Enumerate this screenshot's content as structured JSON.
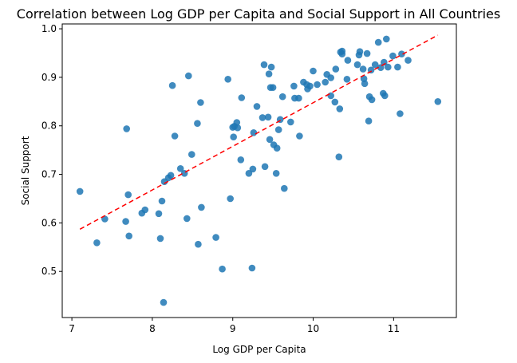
{
  "chart_data": {
    "type": "scatter",
    "title": "Correlation between Log GDP per Capita and Social Support in All Countries",
    "xlabel": "Log GDP per Capita",
    "ylabel": "Social Support",
    "xlim": [
      6.88,
      11.78
    ],
    "ylim": [
      0.405,
      1.01
    ],
    "xticks": [
      7,
      8,
      9,
      10,
      11
    ],
    "yticks": [
      0.5,
      0.6,
      0.7,
      0.8,
      0.9,
      1.0
    ],
    "grid": false,
    "legend": "none",
    "point_color": "#1f77b4",
    "trend_color": "#ff0000",
    "trendline": {
      "style": "dashed",
      "x": [
        7.1,
        11.55
      ],
      "y": [
        0.587,
        0.987
      ]
    },
    "points": [
      {
        "x": 7.1,
        "y": 0.665
      },
      {
        "x": 7.31,
        "y": 0.559
      },
      {
        "x": 7.41,
        "y": 0.608
      },
      {
        "x": 7.67,
        "y": 0.603
      },
      {
        "x": 7.68,
        "y": 0.794
      },
      {
        "x": 7.7,
        "y": 0.658
      },
      {
        "x": 7.71,
        "y": 0.573
      },
      {
        "x": 7.87,
        "y": 0.62
      },
      {
        "x": 7.91,
        "y": 0.627
      },
      {
        "x": 8.08,
        "y": 0.619
      },
      {
        "x": 8.1,
        "y": 0.568
      },
      {
        "x": 8.12,
        "y": 0.645
      },
      {
        "x": 8.14,
        "y": 0.436
      },
      {
        "x": 8.15,
        "y": 0.685
      },
      {
        "x": 8.2,
        "y": 0.693
      },
      {
        "x": 8.23,
        "y": 0.698
      },
      {
        "x": 8.25,
        "y": 0.883
      },
      {
        "x": 8.28,
        "y": 0.779
      },
      {
        "x": 8.35,
        "y": 0.712
      },
      {
        "x": 8.4,
        "y": 0.702
      },
      {
        "x": 8.43,
        "y": 0.609
      },
      {
        "x": 8.45,
        "y": 0.903
      },
      {
        "x": 8.49,
        "y": 0.741
      },
      {
        "x": 8.56,
        "y": 0.805
      },
      {
        "x": 8.57,
        "y": 0.556
      },
      {
        "x": 8.6,
        "y": 0.848
      },
      {
        "x": 8.61,
        "y": 0.632
      },
      {
        "x": 8.79,
        "y": 0.57
      },
      {
        "x": 8.87,
        "y": 0.505
      },
      {
        "x": 8.94,
        "y": 0.896
      },
      {
        "x": 8.97,
        "y": 0.65
      },
      {
        "x": 9.0,
        "y": 0.797
      },
      {
        "x": 9.01,
        "y": 0.777
      },
      {
        "x": 9.02,
        "y": 0.799
      },
      {
        "x": 9.05,
        "y": 0.807
      },
      {
        "x": 9.06,
        "y": 0.796
      },
      {
        "x": 9.1,
        "y": 0.73
      },
      {
        "x": 9.11,
        "y": 0.858
      },
      {
        "x": 9.2,
        "y": 0.702
      },
      {
        "x": 9.24,
        "y": 0.507
      },
      {
        "x": 9.25,
        "y": 0.711
      },
      {
        "x": 9.26,
        "y": 0.786
      },
      {
        "x": 9.3,
        "y": 0.84
      },
      {
        "x": 9.37,
        "y": 0.817
      },
      {
        "x": 9.39,
        "y": 0.926
      },
      {
        "x": 9.4,
        "y": 0.716
      },
      {
        "x": 9.44,
        "y": 0.818
      },
      {
        "x": 9.45,
        "y": 0.907
      },
      {
        "x": 9.46,
        "y": 0.772
      },
      {
        "x": 9.47,
        "y": 0.879
      },
      {
        "x": 9.48,
        "y": 0.921
      },
      {
        "x": 9.5,
        "y": 0.879
      },
      {
        "x": 9.51,
        "y": 0.761
      },
      {
        "x": 9.54,
        "y": 0.702
      },
      {
        "x": 9.55,
        "y": 0.754
      },
      {
        "x": 9.57,
        "y": 0.792
      },
      {
        "x": 9.59,
        "y": 0.813
      },
      {
        "x": 9.62,
        "y": 0.86
      },
      {
        "x": 9.64,
        "y": 0.671
      },
      {
        "x": 9.72,
        "y": 0.808
      },
      {
        "x": 9.76,
        "y": 0.882
      },
      {
        "x": 9.77,
        "y": 0.857
      },
      {
        "x": 9.82,
        "y": 0.857
      },
      {
        "x": 9.83,
        "y": 0.779
      },
      {
        "x": 9.88,
        "y": 0.89
      },
      {
        "x": 9.92,
        "y": 0.885
      },
      {
        "x": 9.93,
        "y": 0.876
      },
      {
        "x": 9.96,
        "y": 0.882
      },
      {
        "x": 10.0,
        "y": 0.913
      },
      {
        "x": 10.05,
        "y": 0.885
      },
      {
        "x": 10.15,
        "y": 0.89
      },
      {
        "x": 10.17,
        "y": 0.906
      },
      {
        "x": 10.22,
        "y": 0.862
      },
      {
        "x": 10.22,
        "y": 0.899
      },
      {
        "x": 10.27,
        "y": 0.849
      },
      {
        "x": 10.28,
        "y": 0.917
      },
      {
        "x": 10.32,
        "y": 0.736
      },
      {
        "x": 10.33,
        "y": 0.835
      },
      {
        "x": 10.34,
        "y": 0.952
      },
      {
        "x": 10.36,
        "y": 0.954
      },
      {
        "x": 10.36,
        "y": 0.948
      },
      {
        "x": 10.42,
        "y": 0.896
      },
      {
        "x": 10.43,
        "y": 0.935
      },
      {
        "x": 10.55,
        "y": 0.926
      },
      {
        "x": 10.57,
        "y": 0.946
      },
      {
        "x": 10.58,
        "y": 0.953
      },
      {
        "x": 10.62,
        "y": 0.917
      },
      {
        "x": 10.63,
        "y": 0.897
      },
      {
        "x": 10.64,
        "y": 0.887
      },
      {
        "x": 10.67,
        "y": 0.949
      },
      {
        "x": 10.69,
        "y": 0.81
      },
      {
        "x": 10.7,
        "y": 0.86
      },
      {
        "x": 10.72,
        "y": 0.915
      },
      {
        "x": 10.73,
        "y": 0.854
      },
      {
        "x": 10.77,
        "y": 0.926
      },
      {
        "x": 10.81,
        "y": 0.972
      },
      {
        "x": 10.84,
        "y": 0.92
      },
      {
        "x": 10.87,
        "y": 0.867
      },
      {
        "x": 10.88,
        "y": 0.931
      },
      {
        "x": 10.89,
        "y": 0.862
      },
      {
        "x": 10.91,
        "y": 0.979
      },
      {
        "x": 10.93,
        "y": 0.921
      },
      {
        "x": 10.99,
        "y": 0.944
      },
      {
        "x": 11.05,
        "y": 0.921
      },
      {
        "x": 11.08,
        "y": 0.825
      },
      {
        "x": 11.1,
        "y": 0.948
      },
      {
        "x": 11.18,
        "y": 0.935
      },
      {
        "x": 11.55,
        "y": 0.85
      }
    ]
  }
}
